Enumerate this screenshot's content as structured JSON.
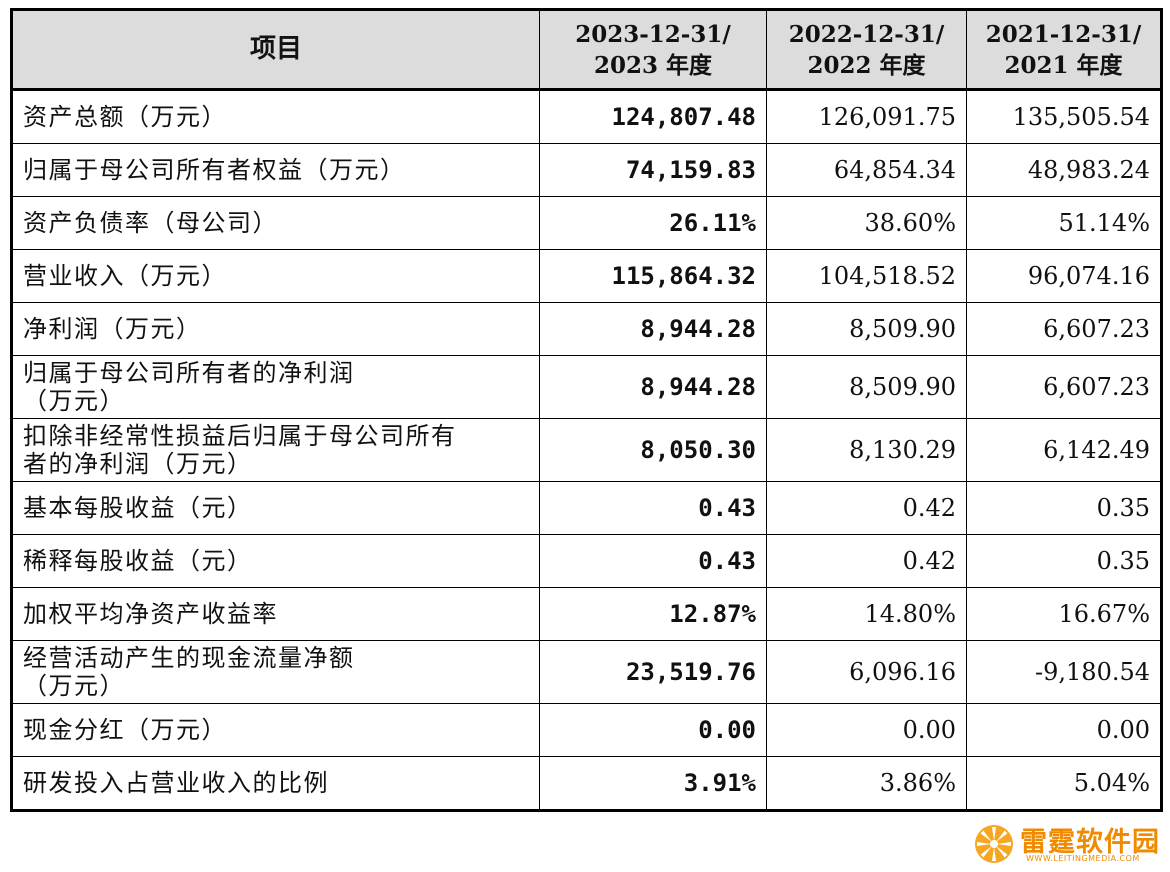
{
  "table": {
    "headers": [
      [
        "项目"
      ],
      [
        "2023-12-31/",
        "2023 年度"
      ],
      [
        "2022-12-31/",
        "2022 年度"
      ],
      [
        "2021-12-31/",
        "2021 年度"
      ]
    ],
    "rows": [
      {
        "label": [
          "资产总额（万元）"
        ],
        "values": [
          "124,807.48",
          "126,091.75",
          "135,505.54"
        ]
      },
      {
        "label": [
          "归属于母公司所有者权益（万元）"
        ],
        "values": [
          "74,159.83",
          "64,854.34",
          "48,983.24"
        ]
      },
      {
        "label": [
          "资产负债率（母公司）"
        ],
        "values": [
          "26.11%",
          "38.60%",
          "51.14%"
        ]
      },
      {
        "label": [
          "营业收入（万元）"
        ],
        "values": [
          "115,864.32",
          "104,518.52",
          "96,074.16"
        ]
      },
      {
        "label": [
          "净利润（万元）"
        ],
        "values": [
          "8,944.28",
          "8,509.90",
          "6,607.23"
        ]
      },
      {
        "label": [
          "归属于母公司所有者的净利润",
          "（万元）"
        ],
        "values": [
          "8,944.28",
          "8,509.90",
          "6,607.23"
        ]
      },
      {
        "label": [
          "扣除非经常性损益后归属于母公司所有",
          "者的净利润（万元）"
        ],
        "values": [
          "8,050.30",
          "8,130.29",
          "6,142.49"
        ]
      },
      {
        "label": [
          "基本每股收益（元）"
        ],
        "values": [
          "0.43",
          "0.42",
          "0.35"
        ]
      },
      {
        "label": [
          "稀释每股收益（元）"
        ],
        "values": [
          "0.43",
          "0.42",
          "0.35"
        ]
      },
      {
        "label": [
          "加权平均净资产收益率"
        ],
        "values": [
          "12.87%",
          "14.80%",
          "16.67%"
        ]
      },
      {
        "label": [
          "经营活动产生的现金流量净额",
          "（万元）"
        ],
        "values": [
          "23,519.76",
          "6,096.16",
          "-9,180.54"
        ]
      },
      {
        "label": [
          "现金分红（万元）"
        ],
        "values": [
          "0.00",
          "0.00",
          "0.00"
        ]
      },
      {
        "label": [
          "研发投入占营业收入的比例"
        ],
        "values": [
          "3.91%",
          "3.86%",
          "5.04%"
        ]
      }
    ]
  },
  "watermark": {
    "text": "雷霆软件园",
    "sub": "WWW.LEITINGMEDIA.COM",
    "color": "#f08a00",
    "icon": "orange-flower-icon"
  }
}
